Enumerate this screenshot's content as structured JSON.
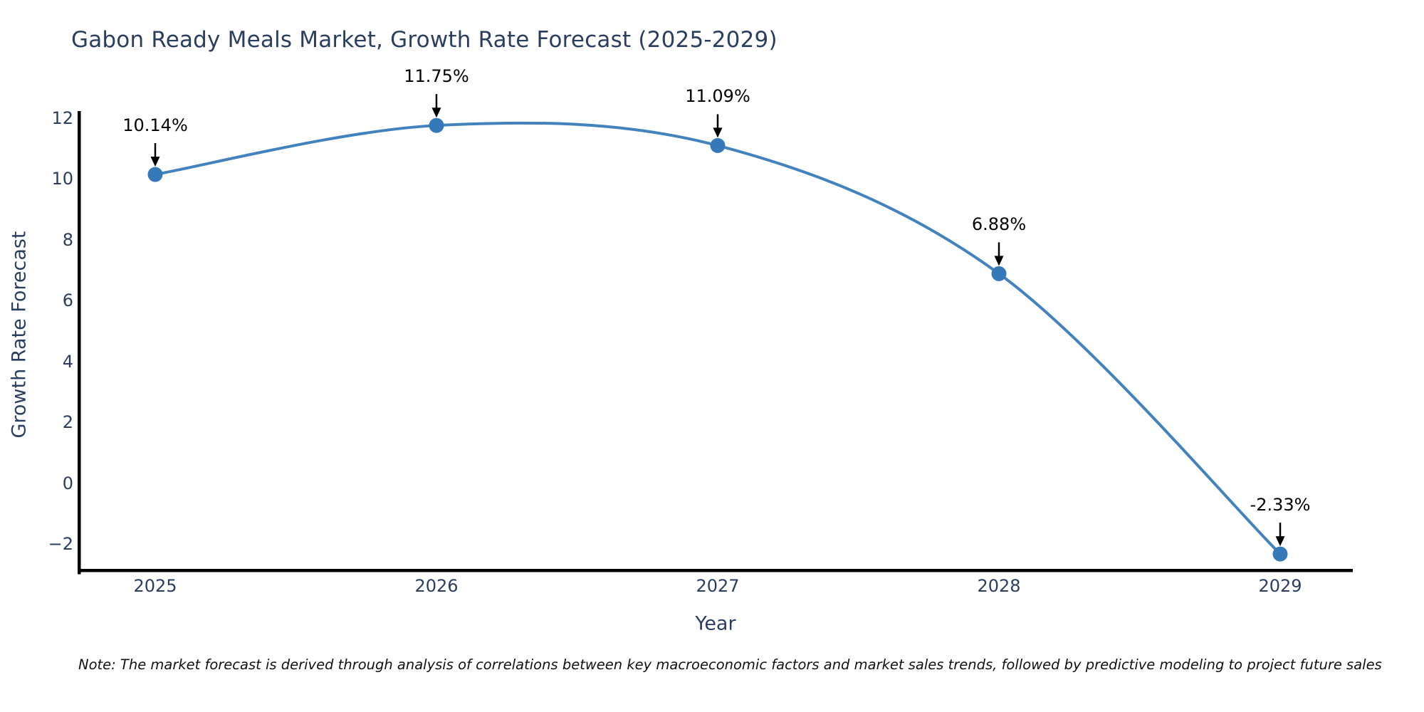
{
  "title": "Gabon Ready Meals Market, Growth Rate Forecast (2025-2029)",
  "note": "Note: The market forecast is derived through analysis of correlations between key macroeconomic factors and market sales trends, followed by predictive modeling to project future sales",
  "axes": {
    "x": {
      "title": "Year",
      "ticks": [
        "2025",
        "2026",
        "2027",
        "2028",
        "2029"
      ]
    },
    "y": {
      "title": "Growth Rate Forecast",
      "ticks": [
        "12",
        "10",
        "8",
        "6",
        "4",
        "2",
        "0",
        "−2"
      ],
      "tick_values": [
        12,
        10,
        8,
        6,
        4,
        2,
        0,
        -2
      ]
    }
  },
  "chart_data": {
    "type": "line",
    "title": "Gabon Ready Meals Market, Growth Rate Forecast (2025-2029)",
    "x": [
      2025,
      2026,
      2027,
      2028,
      2029
    ],
    "values": [
      10.14,
      11.75,
      11.09,
      6.88,
      -2.33
    ],
    "point_labels": [
      "10.14%",
      "11.75%",
      "11.09%",
      "6.88%",
      "-2.33%"
    ],
    "xlabel": "Year",
    "ylabel": "Growth Rate Forecast",
    "ylim": [
      -2.9,
      12.2
    ],
    "line_shape": "spline",
    "grid": false,
    "legend": false,
    "annotation_style": "black-down-arrows",
    "colors": {
      "line": "#4383bd",
      "marker": "#3579b8",
      "axis": "#000000",
      "text": "#2a3f5f",
      "annotation": "#000000",
      "background": "#ffffff"
    }
  }
}
